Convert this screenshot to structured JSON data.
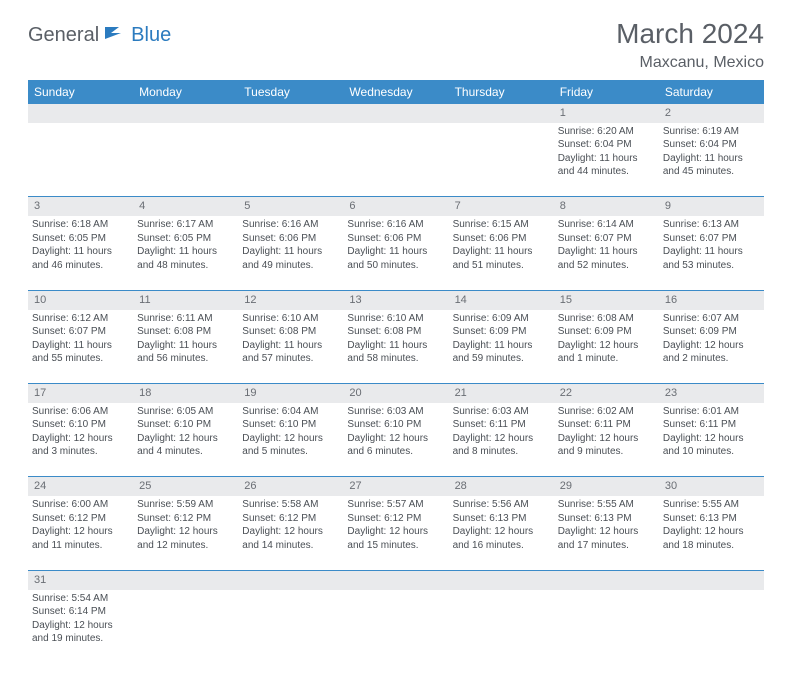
{
  "logo": {
    "part1": "General",
    "part2": "Blue"
  },
  "title": "March 2024",
  "location": "Maxcanu, Mexico",
  "colors": {
    "header_bg": "#3b8bc8",
    "header_fg": "#ffffff",
    "daynum_bg": "#e9eaec",
    "text": "#4a4f55",
    "rule": "#3b8bc8",
    "logo_gray": "#5a5f66",
    "logo_blue": "#2b7bbf"
  },
  "weekdays": [
    "Sunday",
    "Monday",
    "Tuesday",
    "Wednesday",
    "Thursday",
    "Friday",
    "Saturday"
  ],
  "weeks": [
    [
      null,
      null,
      null,
      null,
      null,
      {
        "n": "1",
        "sr": "Sunrise: 6:20 AM",
        "ss": "Sunset: 6:04 PM",
        "d1": "Daylight: 11 hours",
        "d2": "and 44 minutes."
      },
      {
        "n": "2",
        "sr": "Sunrise: 6:19 AM",
        "ss": "Sunset: 6:04 PM",
        "d1": "Daylight: 11 hours",
        "d2": "and 45 minutes."
      }
    ],
    [
      {
        "n": "3",
        "sr": "Sunrise: 6:18 AM",
        "ss": "Sunset: 6:05 PM",
        "d1": "Daylight: 11 hours",
        "d2": "and 46 minutes."
      },
      {
        "n": "4",
        "sr": "Sunrise: 6:17 AM",
        "ss": "Sunset: 6:05 PM",
        "d1": "Daylight: 11 hours",
        "d2": "and 48 minutes."
      },
      {
        "n": "5",
        "sr": "Sunrise: 6:16 AM",
        "ss": "Sunset: 6:06 PM",
        "d1": "Daylight: 11 hours",
        "d2": "and 49 minutes."
      },
      {
        "n": "6",
        "sr": "Sunrise: 6:16 AM",
        "ss": "Sunset: 6:06 PM",
        "d1": "Daylight: 11 hours",
        "d2": "and 50 minutes."
      },
      {
        "n": "7",
        "sr": "Sunrise: 6:15 AM",
        "ss": "Sunset: 6:06 PM",
        "d1": "Daylight: 11 hours",
        "d2": "and 51 minutes."
      },
      {
        "n": "8",
        "sr": "Sunrise: 6:14 AM",
        "ss": "Sunset: 6:07 PM",
        "d1": "Daylight: 11 hours",
        "d2": "and 52 minutes."
      },
      {
        "n": "9",
        "sr": "Sunrise: 6:13 AM",
        "ss": "Sunset: 6:07 PM",
        "d1": "Daylight: 11 hours",
        "d2": "and 53 minutes."
      }
    ],
    [
      {
        "n": "10",
        "sr": "Sunrise: 6:12 AM",
        "ss": "Sunset: 6:07 PM",
        "d1": "Daylight: 11 hours",
        "d2": "and 55 minutes."
      },
      {
        "n": "11",
        "sr": "Sunrise: 6:11 AM",
        "ss": "Sunset: 6:08 PM",
        "d1": "Daylight: 11 hours",
        "d2": "and 56 minutes."
      },
      {
        "n": "12",
        "sr": "Sunrise: 6:10 AM",
        "ss": "Sunset: 6:08 PM",
        "d1": "Daylight: 11 hours",
        "d2": "and 57 minutes."
      },
      {
        "n": "13",
        "sr": "Sunrise: 6:10 AM",
        "ss": "Sunset: 6:08 PM",
        "d1": "Daylight: 11 hours",
        "d2": "and 58 minutes."
      },
      {
        "n": "14",
        "sr": "Sunrise: 6:09 AM",
        "ss": "Sunset: 6:09 PM",
        "d1": "Daylight: 11 hours",
        "d2": "and 59 minutes."
      },
      {
        "n": "15",
        "sr": "Sunrise: 6:08 AM",
        "ss": "Sunset: 6:09 PM",
        "d1": "Daylight: 12 hours",
        "d2": "and 1 minute."
      },
      {
        "n": "16",
        "sr": "Sunrise: 6:07 AM",
        "ss": "Sunset: 6:09 PM",
        "d1": "Daylight: 12 hours",
        "d2": "and 2 minutes."
      }
    ],
    [
      {
        "n": "17",
        "sr": "Sunrise: 6:06 AM",
        "ss": "Sunset: 6:10 PM",
        "d1": "Daylight: 12 hours",
        "d2": "and 3 minutes."
      },
      {
        "n": "18",
        "sr": "Sunrise: 6:05 AM",
        "ss": "Sunset: 6:10 PM",
        "d1": "Daylight: 12 hours",
        "d2": "and 4 minutes."
      },
      {
        "n": "19",
        "sr": "Sunrise: 6:04 AM",
        "ss": "Sunset: 6:10 PM",
        "d1": "Daylight: 12 hours",
        "d2": "and 5 minutes."
      },
      {
        "n": "20",
        "sr": "Sunrise: 6:03 AM",
        "ss": "Sunset: 6:10 PM",
        "d1": "Daylight: 12 hours",
        "d2": "and 6 minutes."
      },
      {
        "n": "21",
        "sr": "Sunrise: 6:03 AM",
        "ss": "Sunset: 6:11 PM",
        "d1": "Daylight: 12 hours",
        "d2": "and 8 minutes."
      },
      {
        "n": "22",
        "sr": "Sunrise: 6:02 AM",
        "ss": "Sunset: 6:11 PM",
        "d1": "Daylight: 12 hours",
        "d2": "and 9 minutes."
      },
      {
        "n": "23",
        "sr": "Sunrise: 6:01 AM",
        "ss": "Sunset: 6:11 PM",
        "d1": "Daylight: 12 hours",
        "d2": "and 10 minutes."
      }
    ],
    [
      {
        "n": "24",
        "sr": "Sunrise: 6:00 AM",
        "ss": "Sunset: 6:12 PM",
        "d1": "Daylight: 12 hours",
        "d2": "and 11 minutes."
      },
      {
        "n": "25",
        "sr": "Sunrise: 5:59 AM",
        "ss": "Sunset: 6:12 PM",
        "d1": "Daylight: 12 hours",
        "d2": "and 12 minutes."
      },
      {
        "n": "26",
        "sr": "Sunrise: 5:58 AM",
        "ss": "Sunset: 6:12 PM",
        "d1": "Daylight: 12 hours",
        "d2": "and 14 minutes."
      },
      {
        "n": "27",
        "sr": "Sunrise: 5:57 AM",
        "ss": "Sunset: 6:12 PM",
        "d1": "Daylight: 12 hours",
        "d2": "and 15 minutes."
      },
      {
        "n": "28",
        "sr": "Sunrise: 5:56 AM",
        "ss": "Sunset: 6:13 PM",
        "d1": "Daylight: 12 hours",
        "d2": "and 16 minutes."
      },
      {
        "n": "29",
        "sr": "Sunrise: 5:55 AM",
        "ss": "Sunset: 6:13 PM",
        "d1": "Daylight: 12 hours",
        "d2": "and 17 minutes."
      },
      {
        "n": "30",
        "sr": "Sunrise: 5:55 AM",
        "ss": "Sunset: 6:13 PM",
        "d1": "Daylight: 12 hours",
        "d2": "and 18 minutes."
      }
    ],
    [
      {
        "n": "31",
        "sr": "Sunrise: 5:54 AM",
        "ss": "Sunset: 6:14 PM",
        "d1": "Daylight: 12 hours",
        "d2": "and 19 minutes."
      },
      null,
      null,
      null,
      null,
      null,
      null
    ]
  ]
}
